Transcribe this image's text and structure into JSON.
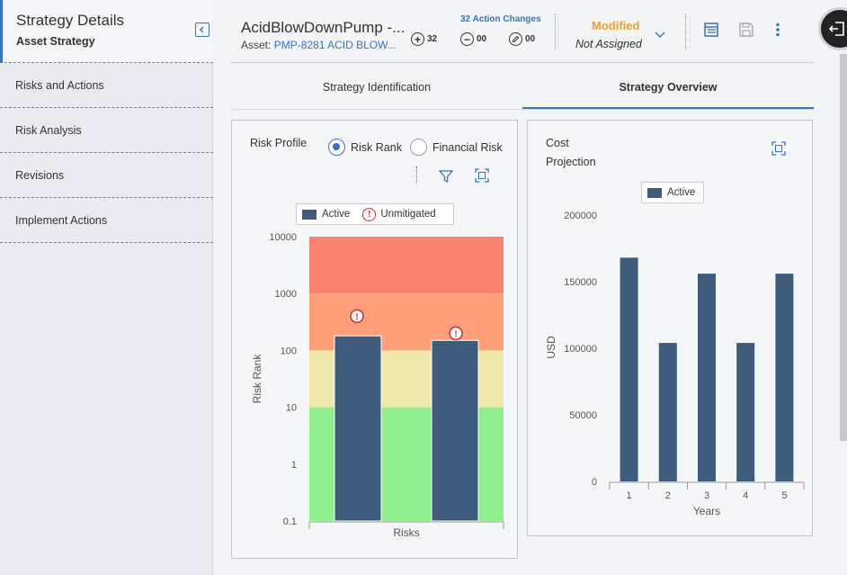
{
  "sidebar": {
    "title": "Strategy Details",
    "subtitle": "Asset Strategy",
    "items": [
      {
        "label": "Risks and Actions"
      },
      {
        "label": "Risk Analysis"
      },
      {
        "label": "Revisions"
      },
      {
        "label": "Implement Actions"
      }
    ]
  },
  "header": {
    "title": "AcidBlowDownPump -...",
    "asset_prefix": "Asset:",
    "asset_link": "PMP-8281 ACID BLOW...",
    "changes_link": "32 Action Changes",
    "added_count": "32",
    "removed_count": "00",
    "modified_count": "00",
    "status": "Modified",
    "assignee": "Not Assigned"
  },
  "tabs": [
    {
      "label": "Strategy Identification",
      "active": false
    },
    {
      "label": "Strategy Overview",
      "active": true
    }
  ],
  "risk_profile": {
    "title": "Risk Profile",
    "options": [
      {
        "label": "Risk Rank",
        "selected": true
      },
      {
        "label": "Financial Risk",
        "selected": false
      }
    ]
  },
  "cost_projection": {
    "title_line1": "Cost",
    "title_line2": "Projection"
  },
  "colors": {
    "accent": "#3b73c4",
    "bar": "#3f5c7d",
    "modified": "#f0a030",
    "band_red": "#fa8070",
    "band_orange": "#ffa07a",
    "band_yellow": "#eee8aa",
    "band_green": "#90ee90"
  },
  "chart_data": [
    {
      "type": "bar",
      "title": "Risk Profile",
      "xlabel": "Risks",
      "ylabel": "Risk Rank",
      "scale": "log",
      "ylim": [
        0.1,
        10000
      ],
      "yticks": [
        "0.1",
        "1",
        "10",
        "100",
        "1000",
        "10000"
      ],
      "legend": [
        "Active",
        "Unmitigated"
      ],
      "series": [
        {
          "name": "Active",
          "values": [
            180,
            150
          ]
        },
        {
          "name": "Unmitigated",
          "values": [
            400,
            200
          ]
        }
      ],
      "bands": [
        {
          "from": 0.1,
          "to": 10,
          "color": "green"
        },
        {
          "from": 10,
          "to": 100,
          "color": "yellow"
        },
        {
          "from": 100,
          "to": 1000,
          "color": "orange"
        },
        {
          "from": 1000,
          "to": 10000,
          "color": "red"
        }
      ]
    },
    {
      "type": "bar",
      "title": "Cost Projection",
      "xlabel": "Years",
      "ylabel": "USD",
      "ylim": [
        0,
        200000
      ],
      "yticks": [
        "0",
        "50000",
        "100000",
        "150000",
        "200000"
      ],
      "categories": [
        "1",
        "2",
        "3",
        "4",
        "5"
      ],
      "legend": [
        "Active"
      ],
      "series": [
        {
          "name": "Active",
          "values": [
            168000,
            104000,
            156000,
            104000,
            156000
          ]
        }
      ]
    }
  ]
}
